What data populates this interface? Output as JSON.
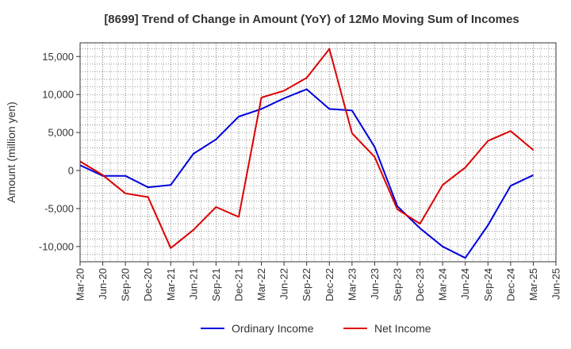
{
  "chart_data": {
    "type": "line",
    "title": "[8699]  Trend of Change in Amount (YoY) of 12Mo Moving Sum of Incomes",
    "xlabel": "",
    "ylabel": "Amount (million yen)",
    "ylim": [
      -12000,
      16800
    ],
    "yticks": [
      -10000,
      -5000,
      0,
      5000,
      10000,
      15000
    ],
    "ytick_labels": [
      "-10,000",
      "-5,000",
      "0",
      "5,000",
      "10,000",
      "15,000"
    ],
    "grid": true,
    "legend_position": "bottom",
    "categories": [
      "Mar-20",
      "Jun-20",
      "Sep-20",
      "Dec-20",
      "Mar-21",
      "Jun-21",
      "Sep-21",
      "Dec-21",
      "Mar-22",
      "Jun-22",
      "Sep-22",
      "Dec-22",
      "Mar-23",
      "Jun-23",
      "Sep-23",
      "Dec-23",
      "Mar-24",
      "Jun-24",
      "Sep-24",
      "Dec-24",
      "Mar-25",
      "Jun-25"
    ],
    "series": [
      {
        "name": "Ordinary Income",
        "color": "#0000dd",
        "values": [
          700,
          -700,
          -700,
          -2200,
          -1900,
          2200,
          4100,
          7100,
          8100,
          9500,
          10700,
          8100,
          7900,
          3100,
          -4700,
          -7600,
          -10000,
          -11500,
          -7200,
          -2000,
          -600,
          null
        ]
      },
      {
        "name": "Net Income",
        "color": "#dd0000",
        "values": [
          1200,
          -600,
          -3000,
          -3500,
          -10200,
          -7800,
          -4800,
          -6100,
          9600,
          10500,
          12200,
          16000,
          4900,
          1800,
          -5100,
          -7000,
          -1900,
          400,
          3900,
          5200,
          2700,
          null
        ]
      }
    ]
  }
}
